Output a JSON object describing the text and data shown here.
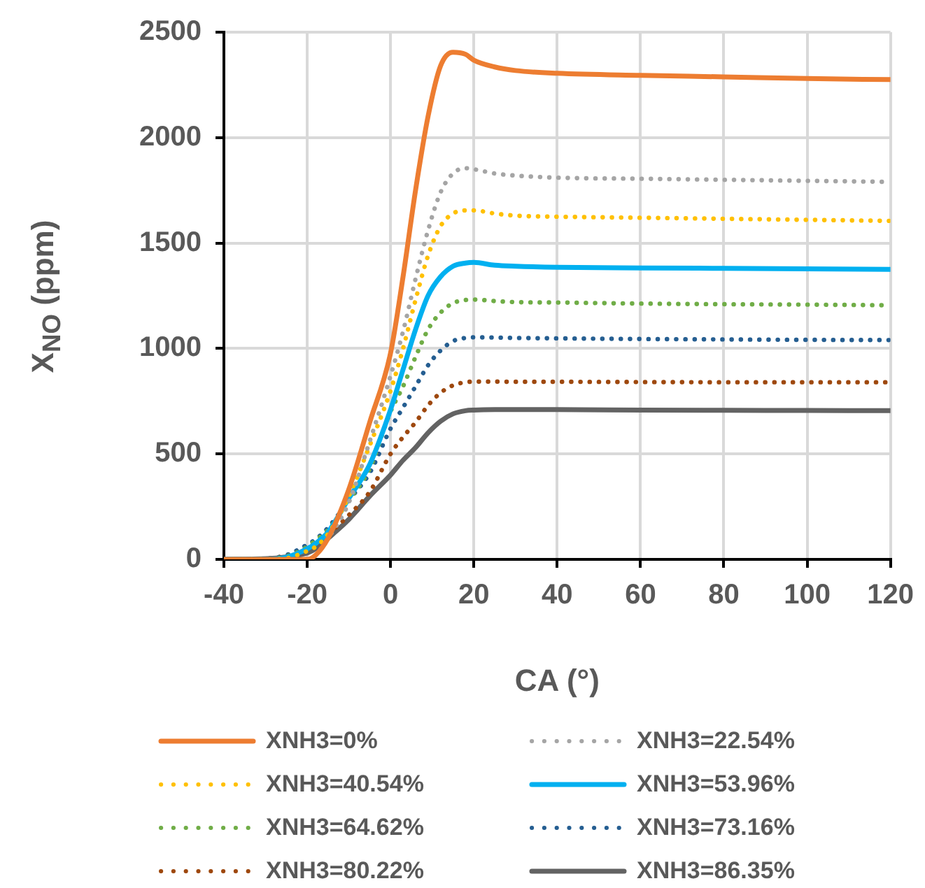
{
  "chart_data": {
    "type": "line",
    "xlabel": "CA (°)",
    "ylabel": "X$_{NO}$ (ppm)",
    "x": [
      -40,
      -30,
      -25,
      -20,
      -18,
      -15,
      -10,
      -5,
      0,
      3,
      6,
      9,
      12,
      15,
      18,
      20,
      25,
      30,
      40,
      60,
      80,
      100,
      120
    ],
    "series": [
      {
        "name": "XNH3=0%",
        "color": "#ed7d31",
        "line_style": "solid",
        "values": [
          0,
          0,
          0,
          0,
          20,
          100,
          333,
          650,
          978,
          1340,
          1750,
          2100,
          2340,
          2405,
          2395,
          2367,
          2335,
          2318,
          2305,
          2295,
          2288,
          2280,
          2275
        ]
      },
      {
        "name": "XNH3=22.54%",
        "color": "#a5a5a5",
        "line_style": "dotted",
        "values": [
          0,
          0,
          0,
          0,
          20,
          100,
          270,
          560,
          870,
          1080,
          1330,
          1560,
          1740,
          1830,
          1855,
          1850,
          1830,
          1820,
          1810,
          1805,
          1800,
          1795,
          1790
        ]
      },
      {
        "name": "XNH3=40.54%",
        "color": "#ffc000",
        "line_style": "dotted",
        "values": [
          0,
          0,
          5,
          40,
          60,
          120,
          300,
          540,
          800,
          1000,
          1230,
          1440,
          1580,
          1640,
          1655,
          1655,
          1640,
          1630,
          1625,
          1620,
          1615,
          1610,
          1605
        ]
      },
      {
        "name": "XNH3=53.96%",
        "color": "#00b0f0",
        "line_style": "solid",
        "values": [
          0,
          0,
          10,
          50,
          75,
          130,
          290,
          450,
          710,
          900,
          1090,
          1250,
          1340,
          1390,
          1405,
          1408,
          1395,
          1390,
          1385,
          1382,
          1380,
          1378,
          1375
        ]
      },
      {
        "name": "XNH3=64.62%",
        "color": "#70ad47",
        "line_style": "dotted",
        "values": [
          0,
          2,
          15,
          60,
          90,
          140,
          280,
          430,
          700,
          820,
          960,
          1090,
          1170,
          1215,
          1230,
          1232,
          1225,
          1220,
          1218,
          1213,
          1210,
          1208,
          1205
        ]
      },
      {
        "name": "XNH3=73.16%",
        "color": "#255e91",
        "line_style": "dotted",
        "values": [
          0,
          3,
          20,
          70,
          95,
          150,
          280,
          410,
          620,
          720,
          820,
          920,
          990,
          1035,
          1050,
          1053,
          1052,
          1050,
          1048,
          1045,
          1043,
          1041,
          1040
        ]
      },
      {
        "name": "XNH3=80.22%",
        "color": "#9e480e",
        "line_style": "dotted",
        "values": [
          0,
          3,
          20,
          60,
          80,
          120,
          210,
          320,
          500,
          580,
          650,
          730,
          790,
          825,
          840,
          843,
          843,
          842,
          842,
          841,
          840,
          840,
          840
        ]
      },
      {
        "name": "XNH3=86.35%",
        "color": "#636363",
        "line_style": "solid",
        "values": [
          0,
          3,
          12,
          30,
          50,
          100,
          190,
          300,
          400,
          470,
          530,
          600,
          655,
          690,
          705,
          708,
          710,
          710,
          710,
          708,
          707,
          706,
          705
        ]
      }
    ],
    "xlim": [
      -40,
      120
    ],
    "xticks": [
      -40,
      -20,
      0,
      20,
      40,
      60,
      80,
      100,
      120
    ],
    "ylim": [
      0,
      2500
    ],
    "yticks": [
      0,
      500,
      1000,
      1500,
      2000,
      2500
    ],
    "grid": true,
    "legend": "bottom",
    "marker": "none"
  }
}
